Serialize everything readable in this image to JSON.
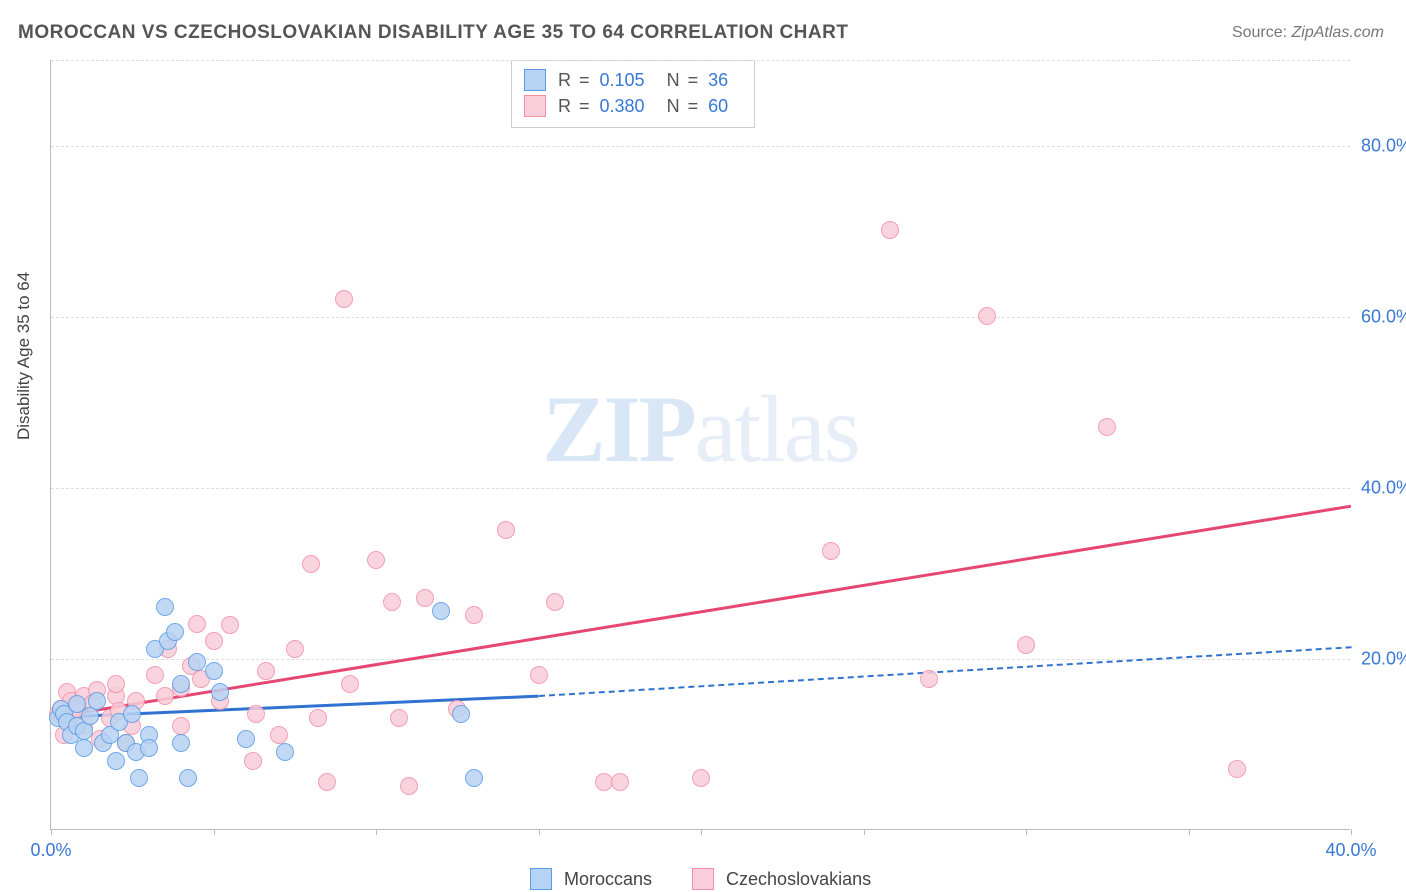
{
  "title": "MOROCCAN VS CZECHOSLOVAKIAN DISABILITY AGE 35 TO 64 CORRELATION CHART",
  "source_label": "Source:",
  "source_value": "ZipAtlas.com",
  "ylabel": "Disability Age 35 to 64",
  "watermark_zip": "ZIP",
  "watermark_atlas": "atlas",
  "chart": {
    "type": "scatter",
    "xlim": [
      0,
      40
    ],
    "ylim": [
      0,
      90
    ],
    "x_ticks": [
      0,
      5,
      10,
      15,
      20,
      25,
      30,
      35,
      40
    ],
    "x_tick_labels": {
      "0": "0.0%",
      "40": "40.0%"
    },
    "y_gridlines": [
      20,
      40,
      60,
      80,
      90
    ],
    "y_tick_labels": {
      "20": "20.0%",
      "40": "40.0%",
      "60": "60.0%",
      "80": "80.0%"
    },
    "grid_color": "#dddddd",
    "axis_color": "#bbbbbb",
    "background_color": "#ffffff",
    "label_color": "#3978d6",
    "series": [
      {
        "name": "Moroccans",
        "fill": "#b7d3f3",
        "stroke": "#5a9ae6",
        "r_value": "0.105",
        "n_value": "36",
        "trend": {
          "x1": 0,
          "y1": 13.3,
          "x2": 15,
          "y2": 15.8,
          "color": "#2f72cf",
          "solid_until_x": 15,
          "dash_extend_to_x": 40,
          "dash_y2": 21.5
        },
        "points": [
          [
            0.2,
            13.0
          ],
          [
            0.3,
            14.0
          ],
          [
            0.4,
            13.5
          ],
          [
            0.5,
            12.5
          ],
          [
            0.6,
            11.0
          ],
          [
            0.8,
            14.6
          ],
          [
            0.8,
            12.0
          ],
          [
            1.0,
            11.5
          ],
          [
            1.0,
            9.5
          ],
          [
            1.2,
            13.2
          ],
          [
            1.4,
            15.0
          ],
          [
            1.6,
            10.0
          ],
          [
            1.8,
            11.0
          ],
          [
            2.0,
            8.0
          ],
          [
            2.1,
            12.5
          ],
          [
            2.3,
            10.0
          ],
          [
            2.5,
            13.5
          ],
          [
            2.6,
            9.0
          ],
          [
            2.7,
            6.0
          ],
          [
            3.0,
            11.0
          ],
          [
            3.0,
            9.5
          ],
          [
            3.2,
            21.0
          ],
          [
            3.5,
            26.0
          ],
          [
            3.6,
            22.0
          ],
          [
            3.8,
            23.0
          ],
          [
            4.0,
            17.0
          ],
          [
            4.0,
            10.0
          ],
          [
            4.2,
            6.0
          ],
          [
            4.5,
            19.5
          ],
          [
            5.0,
            18.5
          ],
          [
            5.2,
            16.0
          ],
          [
            6.0,
            10.5
          ],
          [
            7.2,
            9.0
          ],
          [
            12.0,
            25.5
          ],
          [
            12.6,
            13.5
          ],
          [
            13.0,
            6.0
          ]
        ]
      },
      {
        "name": "Czechoslovakians",
        "fill": "#f9cdd9",
        "stroke": "#f18fa8",
        "r_value": "0.380",
        "n_value": "60",
        "trend": {
          "x1": 0,
          "y1": 13.3,
          "x2": 40,
          "y2": 38.0,
          "color": "#e64771",
          "solid_until_x": 40
        },
        "points": [
          [
            0.2,
            13.5
          ],
          [
            0.3,
            14.0
          ],
          [
            0.4,
            11.0
          ],
          [
            0.5,
            16.0
          ],
          [
            0.6,
            15.0
          ],
          [
            0.6,
            13.0
          ],
          [
            0.8,
            14.0
          ],
          [
            1.0,
            15.5
          ],
          [
            1.0,
            12.0
          ],
          [
            1.3,
            14.7
          ],
          [
            1.4,
            16.3
          ],
          [
            1.5,
            10.5
          ],
          [
            1.8,
            13.0
          ],
          [
            2.0,
            15.5
          ],
          [
            2.0,
            17.0
          ],
          [
            2.1,
            13.8
          ],
          [
            2.3,
            10.0
          ],
          [
            2.5,
            12.0
          ],
          [
            2.6,
            15.0
          ],
          [
            3.2,
            18.0
          ],
          [
            3.5,
            15.5
          ],
          [
            3.6,
            21.0
          ],
          [
            4.0,
            16.5
          ],
          [
            4.0,
            12.0
          ],
          [
            4.3,
            19.0
          ],
          [
            4.5,
            24.0
          ],
          [
            4.6,
            17.5
          ],
          [
            5.0,
            22.0
          ],
          [
            5.2,
            15.0
          ],
          [
            5.5,
            23.8
          ],
          [
            6.2,
            8.0
          ],
          [
            6.3,
            13.5
          ],
          [
            6.6,
            18.5
          ],
          [
            7.0,
            11.0
          ],
          [
            7.5,
            21.0
          ],
          [
            8.0,
            31.0
          ],
          [
            8.2,
            13.0
          ],
          [
            8.5,
            5.5
          ],
          [
            9.0,
            62.0
          ],
          [
            9.2,
            17.0
          ],
          [
            10.0,
            31.5
          ],
          [
            10.5,
            26.5
          ],
          [
            10.7,
            13.0
          ],
          [
            11.0,
            5.0
          ],
          [
            11.5,
            27.0
          ],
          [
            12.5,
            14.0
          ],
          [
            13.0,
            25.0
          ],
          [
            14.0,
            35.0
          ],
          [
            15.0,
            18.0
          ],
          [
            15.5,
            26.5
          ],
          [
            17.0,
            5.5
          ],
          [
            17.5,
            5.5
          ],
          [
            20.0,
            6.0
          ],
          [
            24.0,
            32.5
          ],
          [
            27.0,
            17.5
          ],
          [
            25.8,
            70.0
          ],
          [
            28.8,
            60.0
          ],
          [
            30.0,
            21.5
          ],
          [
            32.5,
            47.0
          ],
          [
            36.5,
            7.0
          ]
        ]
      }
    ],
    "legend_series1": "Moroccans",
    "legend_series2": "Czechoslovakians",
    "r_label": "R",
    "n_label": "N",
    "eq": "="
  }
}
